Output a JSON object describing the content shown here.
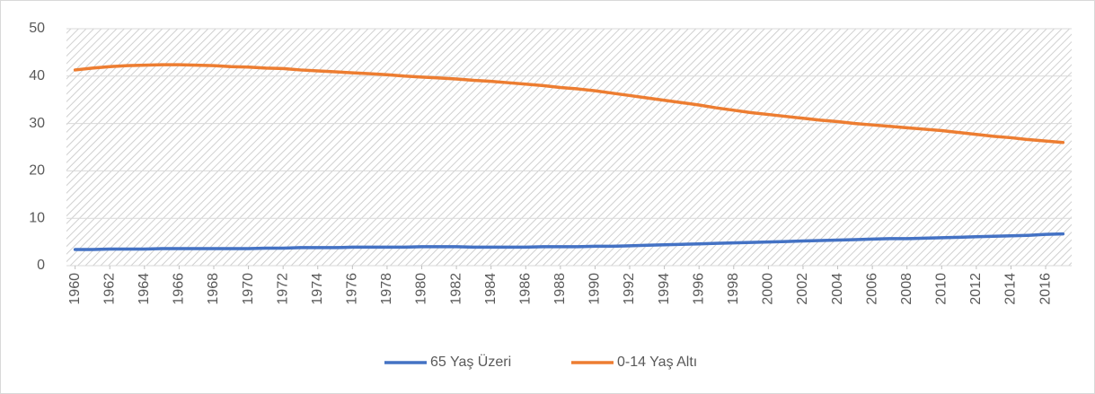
{
  "chart_data": {
    "type": "line",
    "x": [
      1960,
      1961,
      1962,
      1963,
      1964,
      1965,
      1966,
      1967,
      1968,
      1969,
      1970,
      1971,
      1972,
      1973,
      1974,
      1975,
      1976,
      1977,
      1978,
      1979,
      1980,
      1981,
      1982,
      1983,
      1984,
      1985,
      1986,
      1987,
      1988,
      1989,
      1990,
      1991,
      1992,
      1993,
      1994,
      1995,
      1996,
      1997,
      1998,
      1999,
      2000,
      2001,
      2002,
      2003,
      2004,
      2005,
      2006,
      2007,
      2008,
      2009,
      2010,
      2011,
      2012,
      2013,
      2014,
      2015,
      2016,
      2017
    ],
    "series": [
      {
        "name": "65 Yaş Üzeri",
        "color": "#4472c4",
        "values": [
          3.4,
          3.4,
          3.5,
          3.5,
          3.5,
          3.6,
          3.6,
          3.6,
          3.6,
          3.6,
          3.6,
          3.7,
          3.7,
          3.8,
          3.8,
          3.8,
          3.9,
          3.9,
          3.9,
          3.9,
          4.0,
          4.0,
          4.0,
          3.9,
          3.9,
          3.9,
          3.9,
          4.0,
          4.0,
          4.0,
          4.1,
          4.1,
          4.2,
          4.3,
          4.4,
          4.5,
          4.6,
          4.7,
          4.8,
          4.9,
          5.0,
          5.1,
          5.2,
          5.3,
          5.4,
          5.5,
          5.6,
          5.7,
          5.7,
          5.8,
          5.9,
          6.0,
          6.1,
          6.2,
          6.3,
          6.4,
          6.6,
          6.7
        ]
      },
      {
        "name": "0-14 Yaş Altı",
        "color": "#ed7d31",
        "values": [
          41.3,
          41.7,
          42.0,
          42.2,
          42.3,
          42.4,
          42.4,
          42.3,
          42.2,
          42.0,
          41.9,
          41.7,
          41.6,
          41.3,
          41.1,
          40.9,
          40.7,
          40.5,
          40.3,
          40.0,
          39.8,
          39.6,
          39.4,
          39.1,
          38.9,
          38.6,
          38.3,
          38.0,
          37.6,
          37.3,
          36.9,
          36.4,
          35.9,
          35.4,
          34.9,
          34.4,
          33.9,
          33.3,
          32.8,
          32.3,
          31.9,
          31.5,
          31.1,
          30.7,
          30.4,
          30.0,
          29.7,
          29.4,
          29.1,
          28.8,
          28.5,
          28.1,
          27.7,
          27.3,
          27.0,
          26.6,
          26.3,
          26.0
        ]
      }
    ],
    "xlim": [
      1959.5,
      2017.5
    ],
    "xticks": [
      1960,
      1962,
      1964,
      1966,
      1968,
      1970,
      1972,
      1974,
      1976,
      1978,
      1980,
      1982,
      1984,
      1986,
      1988,
      1990,
      1992,
      1994,
      1996,
      1998,
      2000,
      2002,
      2004,
      2006,
      2008,
      2010,
      2012,
      2014,
      2016
    ],
    "ylim": [
      0,
      50
    ],
    "yticks": [
      0,
      10,
      20,
      30,
      40,
      50
    ],
    "grid": true
  }
}
